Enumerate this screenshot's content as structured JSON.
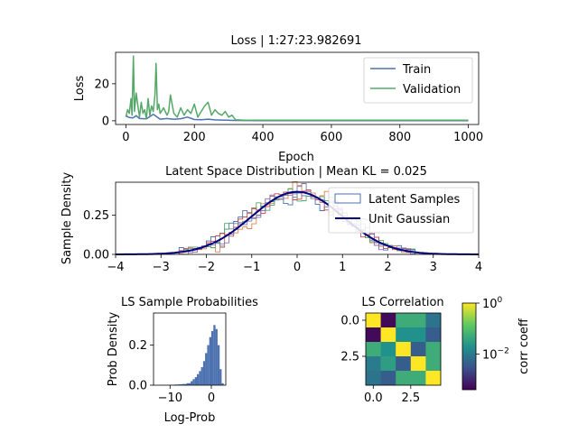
{
  "chart_data": [
    {
      "type": "line",
      "title": "Loss | 1:27:23.982691",
      "xlabel": "Epoch",
      "ylabel": "Loss",
      "xlim": [
        -30,
        1030
      ],
      "ylim": [
        -2,
        37
      ],
      "xticks": [
        0,
        200,
        400,
        600,
        800,
        1000
      ],
      "yticks": [
        0,
        20
      ],
      "legend_position": "top-right",
      "series": [
        {
          "name": "Train",
          "color": "#4c72b0",
          "x": [
            0,
            5,
            10,
            20,
            30,
            40,
            60,
            80,
            100,
            120,
            140,
            160,
            180,
            200,
            220,
            240,
            260,
            280,
            300,
            320,
            350,
            400,
            500,
            600,
            700,
            800,
            900,
            1000
          ],
          "y": [
            3.0,
            2.2,
            1.8,
            1.5,
            2.8,
            1.2,
            1.0,
            3.5,
            0.9,
            1.2,
            0.8,
            1.1,
            2.0,
            0.7,
            0.6,
            0.9,
            0.5,
            0.4,
            0.3,
            0.2,
            0.15,
            0.1,
            0.1,
            0.1,
            0.1,
            0.1,
            0.1,
            0.1
          ]
        },
        {
          "name": "Validation",
          "color": "#55a868",
          "x": [
            0,
            5,
            10,
            15,
            18,
            22,
            25,
            30,
            35,
            40,
            45,
            50,
            55,
            60,
            65,
            70,
            75,
            80,
            85,
            88,
            92,
            96,
            100,
            110,
            120,
            125,
            130,
            140,
            150,
            160,
            170,
            180,
            190,
            200,
            210,
            220,
            230,
            240,
            250,
            260,
            270,
            280,
            290,
            300,
            310,
            320,
            340,
            400,
            500,
            600,
            700,
            800,
            900,
            1000
          ],
          "y": [
            2,
            6,
            4,
            12,
            3,
            35,
            5,
            15,
            8,
            2,
            10,
            4,
            6,
            1,
            12,
            3,
            8,
            5,
            14,
            31,
            6,
            9,
            4,
            7,
            3,
            5,
            14,
            4,
            2,
            7,
            3,
            6,
            4,
            9,
            2,
            5,
            8,
            10,
            3,
            6,
            4,
            3,
            5,
            2,
            3,
            0.6,
            0.4,
            0.3,
            0.3,
            0.3,
            0.3,
            0.3,
            0.3,
            0.3
          ]
        }
      ]
    },
    {
      "type": "histogram",
      "title": "Latent Space Distribution | Mean KL = 0.025",
      "xlabel": "",
      "ylabel": "Sample Density",
      "xlim": [
        -4,
        4
      ],
      "ylim": [
        0,
        0.46
      ],
      "xticks": [
        -4,
        -3,
        -2,
        -1,
        0,
        1,
        2,
        3,
        4
      ],
      "yticks": [
        0.0,
        0.25
      ],
      "ytick_labels": [
        "0.00",
        "0.25"
      ],
      "legend_position": "top-right",
      "legend": [
        {
          "name": "Latent Samples",
          "kind": "box",
          "color": "#4c72b0"
        },
        {
          "name": "Unit Gaussian",
          "kind": "line",
          "color": "#000080"
        }
      ],
      "series": [
        {
          "color": "#4c72b0",
          "mu": 0.0,
          "sigma": 1.0,
          "flat": 0.35
        },
        {
          "color": "#dd8452",
          "mu": 0.1,
          "sigma": 0.95,
          "flat": 0.0
        },
        {
          "color": "#55a868",
          "mu": 0.0,
          "sigma": 1.0,
          "flat": 0.2
        },
        {
          "color": "#c44e52",
          "mu": -0.05,
          "sigma": 1.0,
          "flat": 0.1
        },
        {
          "color": "#8172b3",
          "mu": 0.05,
          "sigma": 0.97,
          "flat": 0.05
        }
      ]
    },
    {
      "type": "histogram",
      "title": "LS Sample Probabilities",
      "xlabel": "Log-Prob",
      "ylabel": "Prob Density",
      "xlim": [
        -14,
        3.5
      ],
      "ylim": [
        0,
        0.36
      ],
      "xticks": [
        -10,
        0
      ],
      "yticks": [
        0.0,
        0.2
      ],
      "ytick_labels": [
        "0.0",
        "0.2"
      ],
      "color": "#4c72b0",
      "bins": [
        {
          "x": -12.0,
          "y": 0.001
        },
        {
          "x": -11.0,
          "y": 0.001
        },
        {
          "x": -10.0,
          "y": 0.002
        },
        {
          "x": -9.0,
          "y": 0.003
        },
        {
          "x": -8.0,
          "y": 0.004
        },
        {
          "x": -7.0,
          "y": 0.006
        },
        {
          "x": -6.0,
          "y": 0.01
        },
        {
          "x": -5.0,
          "y": 0.02
        },
        {
          "x": -4.5,
          "y": 0.03
        },
        {
          "x": -4.0,
          "y": 0.04
        },
        {
          "x": -3.5,
          "y": 0.055
        },
        {
          "x": -3.0,
          "y": 0.07
        },
        {
          "x": -2.5,
          "y": 0.09
        },
        {
          "x": -2.0,
          "y": 0.12
        },
        {
          "x": -1.5,
          "y": 0.16
        },
        {
          "x": -1.0,
          "y": 0.2
        },
        {
          "x": -0.5,
          "y": 0.24
        },
        {
          "x": 0.0,
          "y": 0.27
        },
        {
          "x": 0.5,
          "y": 0.3
        },
        {
          "x": 1.0,
          "y": 0.28
        },
        {
          "x": 1.5,
          "y": 0.2
        },
        {
          "x": 2.0,
          "y": 0.08
        },
        {
          "x": 2.5,
          "y": 0.01
        }
      ]
    },
    {
      "type": "heatmap",
      "title": "LS Correlation",
      "xlim": [
        -0.5,
        4.5
      ],
      "ylim": [
        4.5,
        -0.5
      ],
      "xticks": [
        0,
        2.5
      ],
      "xtick_labels": [
        "0.0",
        "2.5"
      ],
      "yticks": [
        0,
        2.5
      ],
      "ytick_labels": [
        "0.0",
        "2.5"
      ],
      "colormap": "viridis",
      "scale": "log",
      "colorbar_label": "corr coeff",
      "colorbar_ticks": [
        {
          "value": 1,
          "label": "10",
          "exp": "0"
        },
        {
          "value": 0.01,
          "label": "10",
          "exp": "−2"
        }
      ],
      "colorbar_range": [
        0.0004,
        1
      ],
      "matrix": [
        [
          1.0,
          0.0005,
          0.05,
          0.05,
          0.008
        ],
        [
          0.0005,
          1.0,
          0.02,
          0.02,
          0.004
        ],
        [
          0.05,
          0.02,
          1.0,
          0.004,
          0.05
        ],
        [
          0.01,
          0.03,
          0.004,
          1.0,
          0.05
        ],
        [
          0.008,
          0.004,
          0.05,
          0.05,
          1.0
        ]
      ]
    }
  ]
}
